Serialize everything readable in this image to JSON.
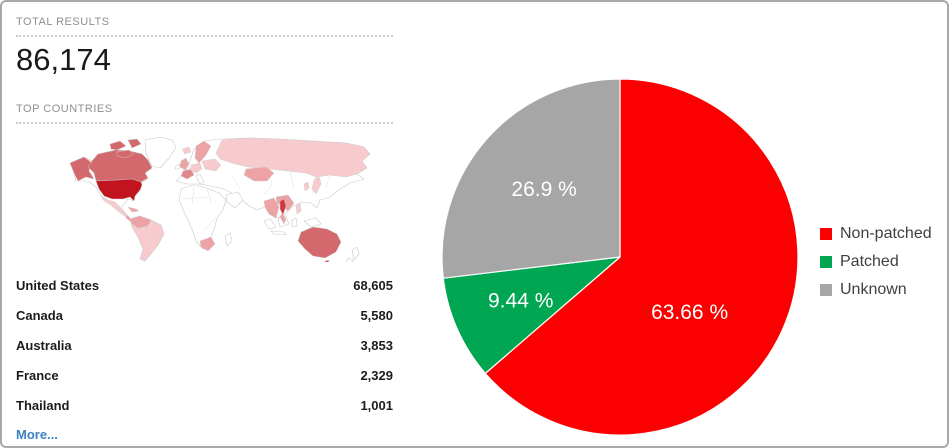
{
  "panel": {
    "total_results": {
      "label": "TOTAL RESULTS",
      "value": "86,174"
    },
    "top_countries": {
      "label": "TOP COUNTRIES",
      "more_label": "More...",
      "countries": [
        {
          "name": "United States",
          "value": "68,605"
        },
        {
          "name": "Canada",
          "value": "5,580"
        },
        {
          "name": "Australia",
          "value": "3,853"
        },
        {
          "name": "France",
          "value": "2,329"
        },
        {
          "name": "Thailand",
          "value": "1,001"
        }
      ]
    }
  },
  "map": {
    "palette": {
      "intensity-4": "#c1141f",
      "intensity-3": "#d4696d",
      "intensity-3b": "#d03540",
      "intensity-2": "#eda3a5",
      "intensity-2b": "#e0898c",
      "intensity-1": "#f7cbcd",
      "land": "#ffffff"
    },
    "shading": {
      "intensity-4": [
        "United States"
      ],
      "intensity-3": [
        "Canada",
        "Alaska",
        "Australia"
      ],
      "intensity-3b": [
        "Thailand"
      ],
      "intensity-2b": [
        "France"
      ],
      "intensity-2": [
        "United Kingdom",
        "Scandinavia",
        "Kazakhstan",
        "India",
        "Indochina",
        "South Africa",
        "Central America",
        "Cuba",
        "Colombia/Venezuela"
      ],
      "intensity-1": [
        "Russia",
        "Mexico",
        "Brazil",
        "Argentina",
        "Iceland",
        "Central Europe",
        "Eastern Europe",
        "Japan",
        "Korea",
        "Philippines"
      ]
    }
  },
  "chart_data": {
    "type": "pie",
    "title": "",
    "start_angle_deg": 0,
    "direction": "clockwise",
    "legend_position": "right",
    "label_color": "#ffffff",
    "series": [
      {
        "name": "Non-patched",
        "value": 63.66,
        "label": "63.66 %",
        "color": "#fb0000"
      },
      {
        "name": "Patched",
        "value": 9.44,
        "label": "9.44 %",
        "color": "#00a651"
      },
      {
        "name": "Unknown",
        "value": 26.9,
        "label": "26.9 %",
        "color": "#a6a6a6"
      }
    ]
  }
}
